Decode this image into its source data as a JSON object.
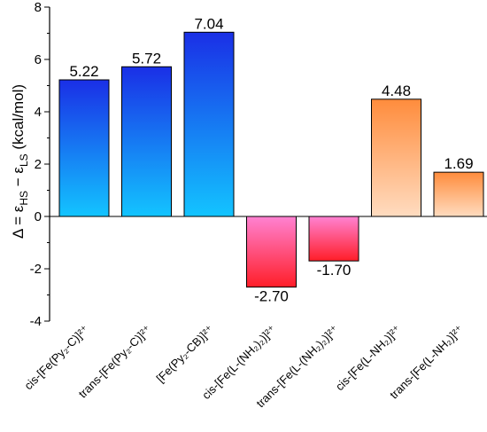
{
  "chart_data": {
    "type": "bar",
    "categories": [
      "cis-[Fe(Py₂-C)]²⁺",
      "trans-[Fe(Py₂-C)]²⁺",
      "[Fe(Py₂-CB)]²⁺",
      "cis-[Fe(L-(NH₂)₂)]²⁺",
      "trans-[Fe(L-(NH₂)₂)]²⁺",
      "cis-[Fe(L-NH₂)]²⁺",
      "trans-[Fe(L-NH₂)]²⁺"
    ],
    "values": [
      5.22,
      5.72,
      7.04,
      -2.7,
      -1.7,
      4.48,
      1.69
    ],
    "data_labels": [
      "5.22",
      "5.72",
      "7.04",
      "-2.70",
      "-1.70",
      "4.48",
      "1.69"
    ],
    "ylabel": "Δ = εHS − εLS (kcal/mol)",
    "ylim": [
      -4,
      8
    ],
    "yticks": [
      -4,
      -2,
      0,
      2,
      4,
      6,
      8
    ],
    "ytick_labels": [
      "-4",
      "-2",
      "0",
      "2",
      "4",
      "6",
      "8"
    ],
    "grid": false,
    "groups": [
      {
        "bars": [
          0,
          1,
          2
        ],
        "gradient": [
          "#1a2fe6",
          "#13c4ff"
        ]
      },
      {
        "bars": [
          3,
          4
        ],
        "gradient": [
          "#ff82d2",
          "#ff1e28"
        ]
      },
      {
        "bars": [
          5,
          6
        ],
        "gradient": [
          "#ff8c3c",
          "#ffdcc0"
        ]
      }
    ]
  }
}
